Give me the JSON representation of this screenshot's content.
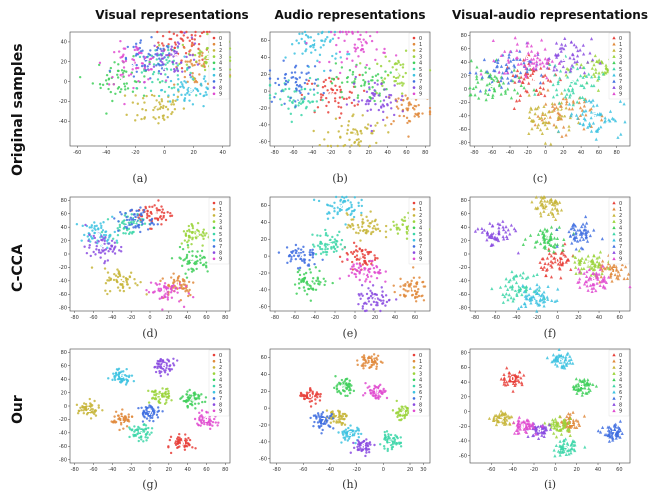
{
  "columns": [
    "Visual representations",
    "Audio representations",
    "Visual-audio representations"
  ],
  "rows": [
    "Original samples",
    "C-CCA",
    "Our"
  ],
  "subfigure_labels": [
    "(a)",
    "(b)",
    "(c)",
    "(d)",
    "(e)",
    "(f)",
    "(g)",
    "(h)",
    "(i)"
  ],
  "legend_labels": [
    "0",
    "1",
    "2",
    "3",
    "4",
    "5",
    "6",
    "7",
    "8",
    "9"
  ],
  "class_colors": [
    "#e8403a",
    "#e08a3c",
    "#c7b53a",
    "#9ad43a",
    "#3fcf5a",
    "#3cd6a8",
    "#3cc2e0",
    "#3f6fe0",
    "#8a4be0",
    "#e04bd0"
  ],
  "chart_data": [
    {
      "type": "scatter",
      "panel": "(a)",
      "marker": "dot",
      "xlim": [
        -65,
        45
      ],
      "ylim": [
        -65,
        50
      ],
      "xticks": [
        "-60",
        "-40",
        "-20",
        "0",
        "20",
        "40"
      ],
      "yticks": [
        "-40",
        "-20",
        "0",
        "20",
        "40"
      ],
      "clusters": [
        {
          "label": "0",
          "x": 15,
          "y": 40
        },
        {
          "label": "1",
          "x": 25,
          "y": 12
        },
        {
          "label": "2",
          "x": -5,
          "y": -25
        },
        {
          "label": "3",
          "x": 30,
          "y": 25
        },
        {
          "label": "4",
          "x": -30,
          "y": 2
        },
        {
          "label": "5",
          "x": 0,
          "y": 12
        },
        {
          "label": "6",
          "x": 18,
          "y": -8
        },
        {
          "label": "7",
          "x": -12,
          "y": 20
        },
        {
          "label": "8",
          "x": 8,
          "y": 25
        },
        {
          "label": "9",
          "x": -22,
          "y": 18
        }
      ]
    },
    {
      "type": "scatter",
      "panel": "(b)",
      "marker": "dot",
      "xlim": [
        -85,
        85
      ],
      "ylim": [
        -65,
        70
      ],
      "xticks": [
        "-80",
        "-60",
        "-40",
        "-20",
        "0",
        "20",
        "40",
        "60",
        "80"
      ],
      "yticks": [
        "-60",
        "-40",
        "-20",
        "0",
        "20",
        "40",
        "60"
      ],
      "clusters": [
        {
          "label": "0",
          "x": -20,
          "y": -5
        },
        {
          "label": "1",
          "x": 65,
          "y": -20
        },
        {
          "label": "2",
          "x": 5,
          "y": -50
        },
        {
          "label": "3",
          "x": 50,
          "y": 20
        },
        {
          "label": "4",
          "x": 10,
          "y": 10
        },
        {
          "label": "5",
          "x": -55,
          "y": -10
        },
        {
          "label": "6",
          "x": -35,
          "y": 55
        },
        {
          "label": "7",
          "x": -60,
          "y": 10
        },
        {
          "label": "8",
          "x": 30,
          "y": -10
        },
        {
          "label": "9",
          "x": 10,
          "y": 55
        }
      ]
    },
    {
      "type": "scatter",
      "panel": "(c)",
      "marker": "triangle",
      "xlim": [
        -85,
        95
      ],
      "ylim": [
        -85,
        85
      ],
      "xticks": [
        "-80",
        "-60",
        "-40",
        "-20",
        "0",
        "20",
        "40",
        "60",
        "80"
      ],
      "yticks": [
        "-80",
        "-60",
        "-40",
        "-20",
        "0",
        "20",
        "40",
        "60",
        "80"
      ],
      "clusters": [
        {
          "label": "0",
          "x": -15,
          "y": 15
        },
        {
          "label": "1",
          "x": 20,
          "y": -35
        },
        {
          "label": "2",
          "x": 0,
          "y": -45
        },
        {
          "label": "3",
          "x": 65,
          "y": 30
        },
        {
          "label": "4",
          "x": -60,
          "y": 5
        },
        {
          "label": "5",
          "x": 30,
          "y": 10
        },
        {
          "label": "6",
          "x": 55,
          "y": -40
        },
        {
          "label": "7",
          "x": -50,
          "y": 25
        },
        {
          "label": "8",
          "x": 20,
          "y": 45
        },
        {
          "label": "9",
          "x": -20,
          "y": 45
        }
      ]
    },
    {
      "type": "scatter",
      "panel": "(d)",
      "marker": "dot",
      "xlim": [
        -85,
        85
      ],
      "ylim": [
        -85,
        85
      ],
      "xticks": [
        "-80",
        "-60",
        "-40",
        "-20",
        "0",
        "20",
        "40",
        "60",
        "80"
      ],
      "yticks": [
        "-80",
        "-60",
        "-40",
        "-20",
        "0",
        "20",
        "40",
        "60",
        "80"
      ],
      "clusters": [
        {
          "label": "0",
          "x": 5,
          "y": 60
        },
        {
          "label": "1",
          "x": 30,
          "y": -45
        },
        {
          "label": "2",
          "x": -30,
          "y": -40
        },
        {
          "label": "3",
          "x": 50,
          "y": 30
        },
        {
          "label": "4",
          "x": 45,
          "y": -10
        },
        {
          "label": "5",
          "x": -25,
          "y": 45
        },
        {
          "label": "6",
          "x": -55,
          "y": 30
        },
        {
          "label": "7",
          "x": -15,
          "y": 50
        },
        {
          "label": "8",
          "x": -50,
          "y": 10
        },
        {
          "label": "9",
          "x": 15,
          "y": -55
        }
      ]
    },
    {
      "type": "scatter",
      "panel": "(e)",
      "marker": "dot",
      "xlim": [
        -85,
        75
      ],
      "ylim": [
        -65,
        70
      ],
      "xticks": [
        "-80",
        "-60",
        "-40",
        "-20",
        "0",
        "20",
        "40",
        "60"
      ],
      "yticks": [
        "-60",
        "-40",
        "-20",
        "0",
        "20",
        "40",
        "60"
      ],
      "clusters": [
        {
          "label": "0",
          "x": 5,
          "y": 0
        },
        {
          "label": "1",
          "x": 55,
          "y": -40
        },
        {
          "label": "2",
          "x": 10,
          "y": 35
        },
        {
          "label": "3",
          "x": 55,
          "y": 35
        },
        {
          "label": "4",
          "x": -45,
          "y": -30
        },
        {
          "label": "5",
          "x": -25,
          "y": 15
        },
        {
          "label": "6",
          "x": -15,
          "y": 60
        },
        {
          "label": "7",
          "x": -55,
          "y": 0
        },
        {
          "label": "8",
          "x": 20,
          "y": -50
        },
        {
          "label": "9",
          "x": 10,
          "y": -20
        }
      ]
    },
    {
      "type": "scatter",
      "panel": "(f)",
      "marker": "triangle",
      "xlim": [
        -85,
        70
      ],
      "ylim": [
        -85,
        85
      ],
      "xticks": [
        "-80",
        "-60",
        "-40",
        "-20",
        "0",
        "20",
        "40",
        "60"
      ],
      "yticks": [
        "-80",
        "-60",
        "-40",
        "-20",
        "0",
        "20",
        "40",
        "60",
        "80"
      ],
      "clusters": [
        {
          "label": "0",
          "x": 0,
          "y": -10
        },
        {
          "label": "1",
          "x": 55,
          "y": -25
        },
        {
          "label": "2",
          "x": -10,
          "y": 70
        },
        {
          "label": "3",
          "x": 30,
          "y": -15
        },
        {
          "label": "4",
          "x": -10,
          "y": 25
        },
        {
          "label": "5",
          "x": -40,
          "y": -50
        },
        {
          "label": "6",
          "x": -20,
          "y": -65
        },
        {
          "label": "7",
          "x": 20,
          "y": 30
        },
        {
          "label": "8",
          "x": -60,
          "y": 30
        },
        {
          "label": "9",
          "x": 35,
          "y": -40
        }
      ]
    },
    {
      "type": "scatter",
      "panel": "(g)",
      "marker": "dot",
      "xlim": [
        -85,
        85
      ],
      "ylim": [
        -85,
        85
      ],
      "xticks": [
        "-80",
        "-60",
        "-40",
        "-20",
        "0",
        "20",
        "40",
        "60",
        "80"
      ],
      "yticks": [
        "-80",
        "-60",
        "-40",
        "-20",
        "0",
        "20",
        "40",
        "60",
        "80"
      ],
      "clusters": [
        {
          "label": "0",
          "x": 35,
          "y": -55
        },
        {
          "label": "1",
          "x": -30,
          "y": -20
        },
        {
          "label": "2",
          "x": -65,
          "y": -5
        },
        {
          "label": "3",
          "x": 10,
          "y": 15
        },
        {
          "label": "4",
          "x": 45,
          "y": 10
        },
        {
          "label": "5",
          "x": -10,
          "y": -40
        },
        {
          "label": "6",
          "x": -30,
          "y": 45
        },
        {
          "label": "7",
          "x": 0,
          "y": -10
        },
        {
          "label": "8",
          "x": 15,
          "y": 60
        },
        {
          "label": "9",
          "x": 60,
          "y": -20
        }
      ]
    },
    {
      "type": "scatter",
      "panel": "(h)",
      "marker": "dot",
      "xlim": [
        -85,
        35
      ],
      "ylim": [
        -65,
        70
      ],
      "xticks": [
        "-80",
        "-60",
        "-40",
        "-20",
        "0",
        "20",
        "30"
      ],
      "yticks": [
        "-60",
        "-40",
        "-20",
        "0",
        "20",
        "40",
        "60"
      ],
      "clusters": [
        {
          "label": "0",
          "x": -55,
          "y": 15
        },
        {
          "label": "1",
          "x": -10,
          "y": 55
        },
        {
          "label": "2",
          "x": -35,
          "y": -10
        },
        {
          "label": "3",
          "x": 15,
          "y": -5
        },
        {
          "label": "4",
          "x": -30,
          "y": 25
        },
        {
          "label": "5",
          "x": 5,
          "y": -40
        },
        {
          "label": "6",
          "x": -25,
          "y": -30
        },
        {
          "label": "7",
          "x": -45,
          "y": -15
        },
        {
          "label": "8",
          "x": -15,
          "y": -45
        },
        {
          "label": "9",
          "x": -5,
          "y": 20
        }
      ]
    },
    {
      "type": "scatter",
      "panel": "(i)",
      "marker": "triangle",
      "xlim": [
        -80,
        70
      ],
      "ylim": [
        -70,
        85
      ],
      "xticks": [
        "-60",
        "-40",
        "-20",
        "0",
        "20",
        "40",
        "60"
      ],
      "yticks": [
        "-60",
        "-40",
        "-20",
        "0",
        "20",
        "40",
        "60",
        "80"
      ],
      "clusters": [
        {
          "label": "0",
          "x": -40,
          "y": 45
        },
        {
          "label": "1",
          "x": 15,
          "y": -15
        },
        {
          "label": "2",
          "x": -50,
          "y": -10
        },
        {
          "label": "3",
          "x": 5,
          "y": -20
        },
        {
          "label": "4",
          "x": 25,
          "y": 35
        },
        {
          "label": "5",
          "x": 10,
          "y": -50
        },
        {
          "label": "6",
          "x": 5,
          "y": 70
        },
        {
          "label": "7",
          "x": 55,
          "y": -30
        },
        {
          "label": "8",
          "x": -15,
          "y": -25
        },
        {
          "label": "9",
          "x": -30,
          "y": -20
        }
      ]
    }
  ]
}
